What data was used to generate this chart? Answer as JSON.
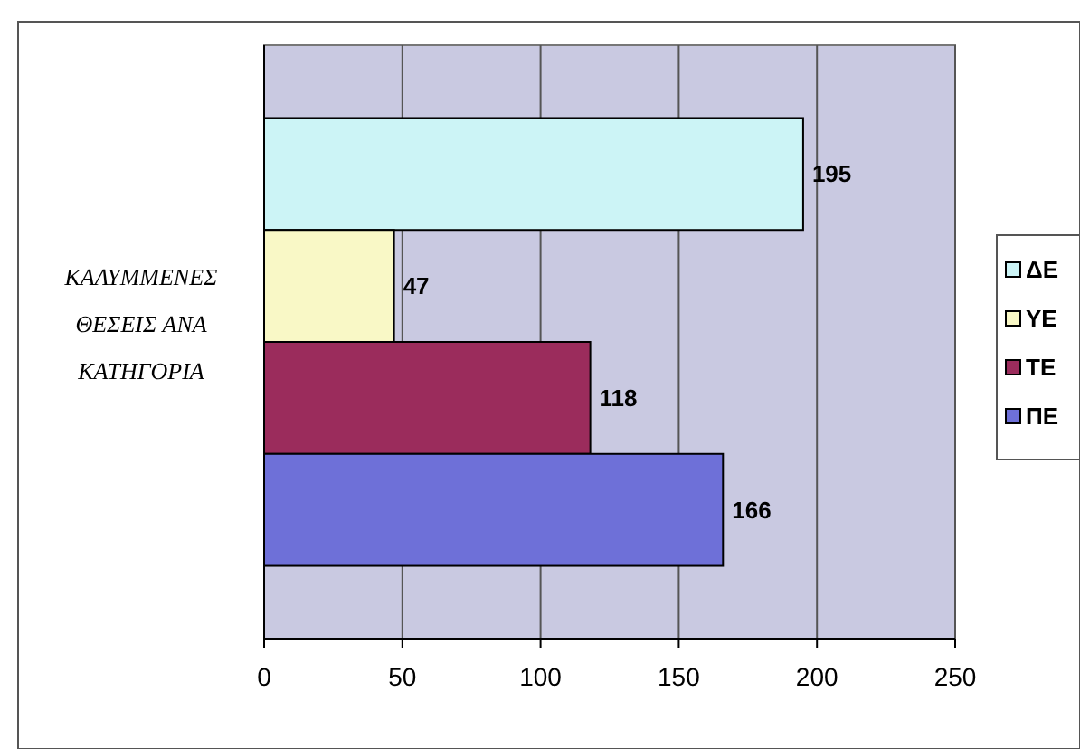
{
  "chart_data": {
    "type": "bar",
    "orientation": "horizontal",
    "ylabel": "ΚΑΛΥΜΜΕΝΕΣ ΘΕΣΕΙΣ ΑΝΑ ΚΑΤΗΓΟΡΙΑ",
    "categories": [
      null,
      null,
      null,
      null
    ],
    "series": [
      {
        "name": "ΔΕ",
        "color": "#ccf4f6",
        "values": [
          195,
          null,
          null,
          null
        ]
      },
      {
        "name": "ΥΕ",
        "color": "#f9f8c6",
        "values": [
          null,
          47,
          null,
          null
        ]
      },
      {
        "name": "ΤΕ",
        "color": "#9b2c5c",
        "values": [
          null,
          null,
          118,
          null
        ]
      },
      {
        "name": "ΠΕ",
        "color": "#6e70d8",
        "values": [
          null,
          null,
          null,
          166
        ]
      }
    ],
    "xlim": [
      0,
      250
    ],
    "xticks": [
      0,
      50,
      100,
      150,
      200,
      250
    ],
    "grid": "x",
    "legend": "right",
    "data_labels": true,
    "tick_labels": "x"
  }
}
